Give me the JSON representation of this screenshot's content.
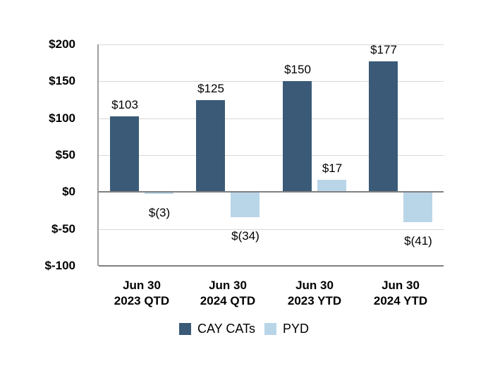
{
  "chart_data": {
    "type": "bar",
    "title": "",
    "categories": [
      "Jun 30 2023 QTD",
      "Jun 30 2024 QTD",
      "Jun 30 2023 YTD",
      "Jun 30 2024 YTD"
    ],
    "category_lines": [
      [
        "Jun 30",
        "2023 QTD"
      ],
      [
        "Jun 30",
        "2024 QTD"
      ],
      [
        "Jun 30",
        "2023 YTD"
      ],
      [
        "Jun 30",
        "2024 YTD"
      ]
    ],
    "series": [
      {
        "name": "CAY CATs",
        "color": "#3A5A78",
        "values": [
          103,
          125,
          150,
          177
        ],
        "labels": [
          "$103",
          "$125",
          "$150",
          "$177"
        ]
      },
      {
        "name": "PYD",
        "color": "#B9D5E8",
        "values": [
          -3,
          -34,
          17,
          -41
        ],
        "labels": [
          "$(3)",
          "$(34)",
          "$17",
          "$(41)"
        ]
      }
    ],
    "y_axis": {
      "min": -100,
      "max": 200,
      "step": 50,
      "ticks": [
        200,
        150,
        100,
        50,
        0,
        -50,
        -100
      ],
      "tick_labels": [
        "$200",
        "$150",
        "$100",
        "$50",
        "$0",
        "$-50",
        "$-100"
      ]
    },
    "grid": true,
    "legend_position": "bottom",
    "styles": {
      "gridline_color": "#D9D9D9",
      "zero_line_color": "#808080",
      "axis_line_color": "#9E9E9E",
      "text_color": "#000000",
      "background": "#FFFFFF"
    }
  }
}
